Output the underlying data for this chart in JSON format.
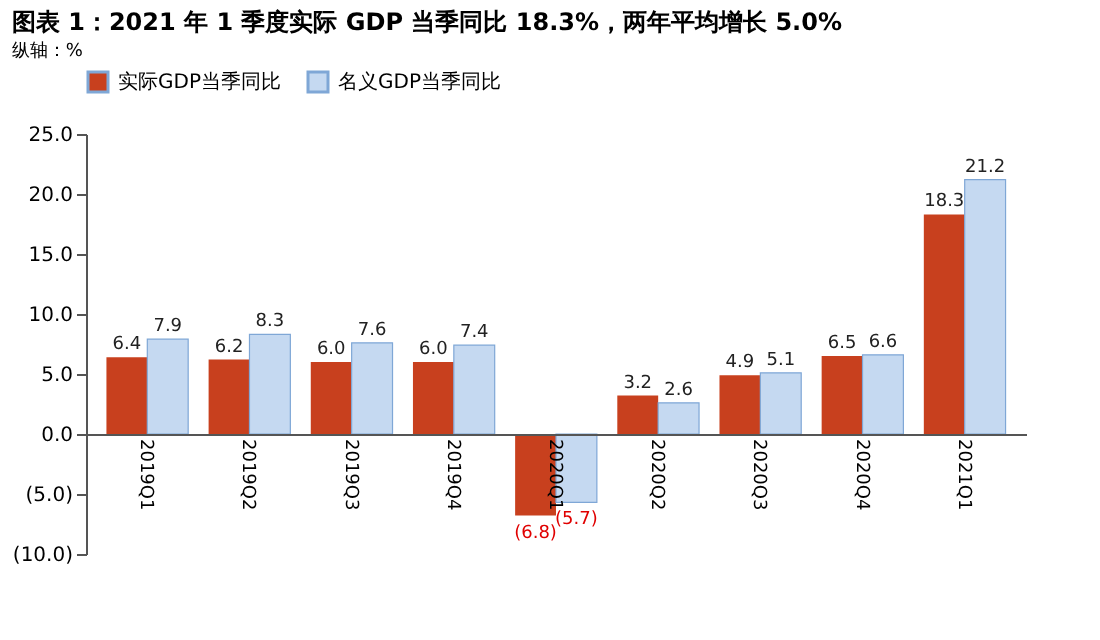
{
  "chart_data": {
    "type": "bar",
    "title": "图表 1：2021 年 1 季度实际 GDP 当季同比 18.3%，两年平均增长 5.0%",
    "categories": [
      "2019Q1",
      "2019Q2",
      "2019Q3",
      "2019Q4",
      "2020Q1",
      "2020Q2",
      "2020Q3",
      "2020Q4",
      "2021Q1"
    ],
    "series": [
      {
        "name": "实际GDP当季同比",
        "color": "#c8401e",
        "values": [
          6.4,
          6.2,
          6.0,
          6.0,
          -6.8,
          3.2,
          4.9,
          6.5,
          18.3
        ],
        "value_labels": [
          "6.4",
          "6.2",
          "6.0",
          "6.0",
          "(6.8)",
          "3.2",
          "4.9",
          "6.5",
          "18.3"
        ]
      },
      {
        "name": "名义GDP当季同比",
        "color": "#c5d9f1",
        "values": [
          7.9,
          8.3,
          7.6,
          7.4,
          -5.7,
          2.6,
          5.1,
          6.6,
          21.2
        ],
        "value_labels": [
          "7.9",
          "8.3",
          "7.6",
          "7.4",
          "(5.7)",
          "2.6",
          "5.1",
          "6.6",
          "21.2"
        ]
      }
    ],
    "ylim": [
      -10,
      25
    ],
    "yticks": [
      {
        "value": -10,
        "label": "(10.0)"
      },
      {
        "value": -5,
        "label": "(5.0)"
      },
      {
        "value": 0,
        "label": "0.0"
      },
      {
        "value": 5,
        "label": "5.0"
      },
      {
        "value": 10,
        "label": "10.0"
      },
      {
        "value": 15,
        "label": "15.0"
      },
      {
        "value": 20,
        "label": "20.0"
      },
      {
        "value": 25,
        "label": "25.0"
      }
    ],
    "annotations": [
      "纵轴：%"
    ],
    "legend": "top",
    "grid": false
  }
}
